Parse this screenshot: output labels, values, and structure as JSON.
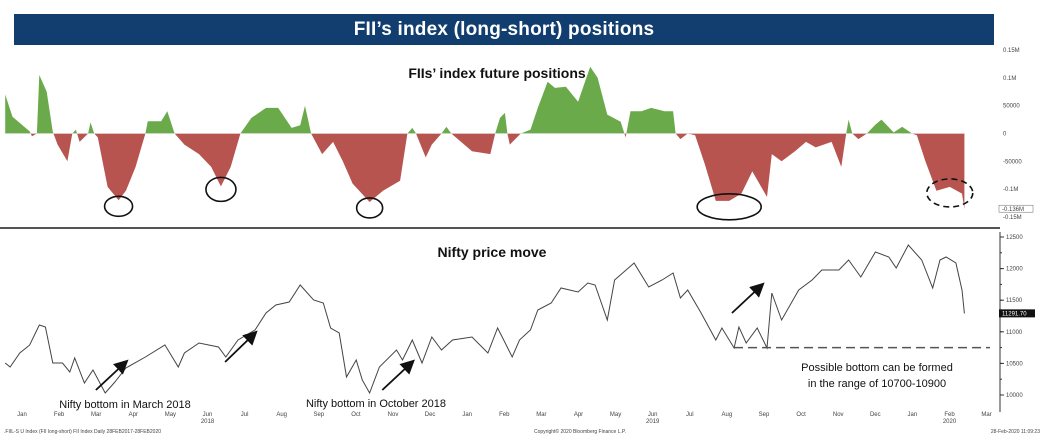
{
  "banner": {
    "title": "FII’s index (long-short) positions"
  },
  "colors": {
    "banner": "#123e6f",
    "positive": "#6aaa4a",
    "negative": "#b85450",
    "line": "#444444"
  },
  "chart_data": [
    {
      "type": "area",
      "title": "FIIs’ index future positions",
      "ylabel": "",
      "ylim": [
        -150000,
        150000
      ],
      "y_ticks": [
        {
          "v": 150000,
          "label": "0.15M"
        },
        {
          "v": 100000,
          "label": "0.1M"
        },
        {
          "v": 50000,
          "label": "50000"
        },
        {
          "v": 0,
          "label": "0"
        },
        {
          "v": -50000,
          "label": "-50000"
        },
        {
          "v": -100000,
          "label": "-0.1M"
        },
        {
          "v": -150000,
          "label": "-0.15M"
        }
      ],
      "last_value_label": "-0.136M",
      "last_value": -136000,
      "fill_positive": "green",
      "fill_negative": "red",
      "highlights": [
        {
          "type": "circle",
          "date": "2018-04-05",
          "style": "solid"
        },
        {
          "type": "circle",
          "date": "2018-06-28",
          "style": "solid"
        },
        {
          "type": "circle",
          "date": "2018-10-28",
          "style": "solid"
        },
        {
          "type": "circle",
          "date": "2019-08-19",
          "style": "solid"
        },
        {
          "type": "circle",
          "date": "2020-02-16",
          "style": "dashed"
        }
      ],
      "points": [
        [
          "2018-01-02",
          70000
        ],
        [
          "2018-01-08",
          30000
        ],
        [
          "2018-01-22",
          4000
        ],
        [
          "2018-01-24",
          -5000
        ],
        [
          "2018-01-28",
          0
        ],
        [
          "2018-01-30",
          105000
        ],
        [
          "2018-02-05",
          75000
        ],
        [
          "2018-02-10",
          3000
        ],
        [
          "2018-02-14",
          -20000
        ],
        [
          "2018-02-22",
          -50000
        ],
        [
          "2018-02-26",
          0
        ],
        [
          "2018-03-01",
          7000
        ],
        [
          "2018-03-04",
          -15000
        ],
        [
          "2018-03-11",
          0
        ],
        [
          "2018-03-13",
          20000
        ],
        [
          "2018-03-16",
          0
        ],
        [
          "2018-03-19",
          -7000
        ],
        [
          "2018-03-27",
          -96000
        ],
        [
          "2018-04-05",
          -120000
        ],
        [
          "2018-04-11",
          -103000
        ],
        [
          "2018-04-19",
          -60000
        ],
        [
          "2018-04-27",
          0
        ],
        [
          "2018-04-29",
          22000
        ],
        [
          "2018-05-10",
          22000
        ],
        [
          "2018-05-15",
          40000
        ],
        [
          "2018-05-21",
          0
        ],
        [
          "2018-05-29",
          -20000
        ],
        [
          "2018-06-10",
          -37000
        ],
        [
          "2018-06-20",
          -60000
        ],
        [
          "2018-06-28",
          -95000
        ],
        [
          "2018-07-06",
          -60000
        ],
        [
          "2018-07-14",
          0
        ],
        [
          "2018-07-23",
          28000
        ],
        [
          "2018-08-04",
          46000
        ],
        [
          "2018-08-14",
          46000
        ],
        [
          "2018-08-25",
          10000
        ],
        [
          "2018-09-01",
          15000
        ],
        [
          "2018-09-05",
          50000
        ],
        [
          "2018-09-10",
          0
        ],
        [
          "2018-09-19",
          -37000
        ],
        [
          "2018-09-28",
          -15000
        ],
        [
          "2018-10-06",
          -50000
        ],
        [
          "2018-10-14",
          -90000
        ],
        [
          "2018-10-28",
          -123000
        ],
        [
          "2018-11-08",
          -103000
        ],
        [
          "2018-11-22",
          -85000
        ],
        [
          "2018-11-28",
          0
        ],
        [
          "2018-12-02",
          10000
        ],
        [
          "2018-12-05",
          0
        ],
        [
          "2018-12-13",
          -43000
        ],
        [
          "2018-12-18",
          -20000
        ],
        [
          "2018-12-26",
          0
        ],
        [
          "2018-12-30",
          12000
        ],
        [
          "2019-01-03",
          0
        ],
        [
          "2019-01-20",
          -32000
        ],
        [
          "2019-02-04",
          -37000
        ],
        [
          "2019-02-08",
          0
        ],
        [
          "2019-02-12",
          28000
        ],
        [
          "2019-02-16",
          37000
        ],
        [
          "2019-02-18",
          0
        ],
        [
          "2019-02-20",
          -20000
        ],
        [
          "2019-03-01",
          0
        ],
        [
          "2019-03-09",
          7000
        ],
        [
          "2019-03-15",
          46000
        ],
        [
          "2019-03-23",
          93000
        ],
        [
          "2019-03-29",
          82000
        ],
        [
          "2019-04-07",
          84000
        ],
        [
          "2019-04-17",
          57000
        ],
        [
          "2019-04-27",
          120000
        ],
        [
          "2019-05-03",
          100000
        ],
        [
          "2019-05-11",
          34000
        ],
        [
          "2019-05-22",
          21000
        ],
        [
          "2019-05-26",
          -7000
        ],
        [
          "2019-05-30",
          40000
        ],
        [
          "2019-06-08",
          40000
        ],
        [
          "2019-06-16",
          46000
        ],
        [
          "2019-06-27",
          40000
        ],
        [
          "2019-07-04",
          40000
        ],
        [
          "2019-07-06",
          0
        ],
        [
          "2019-07-10",
          -10000
        ],
        [
          "2019-07-16",
          0
        ],
        [
          "2019-07-22",
          -3000
        ],
        [
          "2019-07-30",
          -55000
        ],
        [
          "2019-08-08",
          -121000
        ],
        [
          "2019-08-19",
          -121000
        ],
        [
          "2019-08-29",
          -108000
        ],
        [
          "2019-09-07",
          -68000
        ],
        [
          "2019-09-19",
          -114000
        ],
        [
          "2019-09-23",
          -37000
        ],
        [
          "2019-10-01",
          -50000
        ],
        [
          "2019-10-12",
          -32000
        ],
        [
          "2019-10-21",
          -15000
        ],
        [
          "2019-10-29",
          -25000
        ],
        [
          "2019-11-11",
          -15000
        ],
        [
          "2019-11-19",
          -60000
        ],
        [
          "2019-11-23",
          0
        ],
        [
          "2019-11-25",
          25000
        ],
        [
          "2019-11-28",
          0
        ],
        [
          "2019-12-03",
          -10000
        ],
        [
          "2019-12-10",
          0
        ],
        [
          "2019-12-17",
          16000
        ],
        [
          "2019-12-22",
          25000
        ],
        [
          "2020-01-01",
          2000
        ],
        [
          "2020-01-08",
          12000
        ],
        [
          "2020-01-16",
          0
        ],
        [
          "2020-01-20",
          -3000
        ],
        [
          "2020-01-27",
          -50000
        ],
        [
          "2020-02-05",
          -103000
        ],
        [
          "2020-02-16",
          -96000
        ],
        [
          "2020-02-26",
          -108000
        ],
        [
          "2020-02-28",
          -136000
        ]
      ]
    },
    {
      "type": "line",
      "title": "Nifty price move",
      "ylim": [
        9800,
        12600
      ],
      "y_ticks": [
        {
          "v": 12500,
          "label": "12500"
        },
        {
          "v": 12000,
          "label": "12000"
        },
        {
          "v": 11500,
          "label": "11500"
        },
        {
          "v": 11000,
          "label": "11000"
        },
        {
          "v": 10500,
          "label": "10500"
        },
        {
          "v": 10000,
          "label": "10000"
        }
      ],
      "last_value_label": "11291.70",
      "last_value": 11291.7,
      "support_line": {
        "value": 10750,
        "from": "2019-08-23",
        "to": "2020-03-20",
        "style": "dashed"
      },
      "annotations": [
        {
          "text": "Nifty bottom in March 2018",
          "arrow_to": "2018-04-11"
        },
        {
          "text": "Nifty bottom in October 2018",
          "arrow_to": "2018-12-02"
        },
        {
          "text": "Possible bottom can be formed",
          "text2": "in the range of 10700-10900"
        }
      ],
      "arrow_extra": [
        "2018-07-26",
        "2019-09-19"
      ],
      "points": [
        [
          "2018-01-02",
          10507
        ],
        [
          "2018-01-06",
          10443
        ],
        [
          "2018-01-14",
          10665
        ],
        [
          "2018-01-22",
          10790
        ],
        [
          "2018-01-30",
          11108
        ],
        [
          "2018-02-04",
          11076
        ],
        [
          "2018-02-10",
          10507
        ],
        [
          "2018-02-18",
          10507
        ],
        [
          "2018-02-24",
          10364
        ],
        [
          "2018-02-28",
          10586
        ],
        [
          "2018-03-08",
          10190
        ],
        [
          "2018-03-15",
          10396
        ],
        [
          "2018-03-25",
          10032
        ],
        [
          "2018-04-02",
          10206
        ],
        [
          "2018-04-11",
          10428
        ],
        [
          "2018-04-27",
          10602
        ],
        [
          "2018-05-13",
          10792
        ],
        [
          "2018-05-24",
          10443
        ],
        [
          "2018-05-29",
          10665
        ],
        [
          "2018-06-10",
          10823
        ],
        [
          "2018-06-26",
          10760
        ],
        [
          "2018-07-02",
          10602
        ],
        [
          "2018-07-12",
          10871
        ],
        [
          "2018-07-26",
          11030
        ],
        [
          "2018-08-04",
          11298
        ],
        [
          "2018-08-12",
          11424
        ],
        [
          "2018-08-23",
          11472
        ],
        [
          "2018-09-01",
          11740
        ],
        [
          "2018-09-12",
          11503
        ],
        [
          "2018-09-20",
          11456
        ],
        [
          "2018-09-26",
          11060
        ],
        [
          "2018-10-03",
          10981
        ],
        [
          "2018-10-09",
          10285
        ],
        [
          "2018-10-17",
          10554
        ],
        [
          "2018-10-22",
          10238
        ],
        [
          "2018-10-28",
          10032
        ],
        [
          "2018-11-05",
          10443
        ],
        [
          "2018-11-19",
          10712
        ],
        [
          "2018-11-24",
          10554
        ],
        [
          "2018-12-02",
          10871
        ],
        [
          "2018-12-10",
          10507
        ],
        [
          "2018-12-18",
          10918
        ],
        [
          "2018-12-26",
          10712
        ],
        [
          "2019-01-04",
          10871
        ],
        [
          "2019-01-20",
          10918
        ],
        [
          "2019-02-02",
          10665
        ],
        [
          "2019-02-10",
          11060
        ],
        [
          "2019-02-15",
          10871
        ],
        [
          "2019-02-22",
          10602
        ],
        [
          "2019-02-28",
          10871
        ],
        [
          "2019-03-09",
          11030
        ],
        [
          "2019-03-15",
          11345
        ],
        [
          "2019-03-26",
          11456
        ],
        [
          "2019-04-03",
          11693
        ],
        [
          "2019-04-17",
          11630
        ],
        [
          "2019-04-25",
          11772
        ],
        [
          "2019-05-01",
          11740
        ],
        [
          "2019-05-11",
          11187
        ],
        [
          "2019-05-17",
          11820
        ],
        [
          "2019-06-02",
          12089
        ],
        [
          "2019-06-14",
          11709
        ],
        [
          "2019-06-25",
          11820
        ],
        [
          "2019-07-04",
          11930
        ],
        [
          "2019-07-10",
          11535
        ],
        [
          "2019-07-16",
          11661
        ],
        [
          "2019-07-27",
          11298
        ],
        [
          "2019-08-08",
          10871
        ],
        [
          "2019-08-13",
          11060
        ],
        [
          "2019-08-23",
          10744
        ],
        [
          "2019-08-27",
          11076
        ],
        [
          "2019-09-02",
          10823
        ],
        [
          "2019-09-11",
          11060
        ],
        [
          "2019-09-19",
          10744
        ],
        [
          "2019-09-23",
          11614
        ],
        [
          "2019-10-01",
          11187
        ],
        [
          "2019-10-15",
          11661
        ],
        [
          "2019-10-26",
          11820
        ],
        [
          "2019-11-03",
          11978
        ],
        [
          "2019-11-17",
          11978
        ],
        [
          "2019-11-25",
          12136
        ],
        [
          "2019-12-05",
          11867
        ],
        [
          "2019-12-17",
          12263
        ],
        [
          "2019-12-28",
          12184
        ],
        [
          "2020-01-03",
          12010
        ],
        [
          "2020-01-13",
          12373
        ],
        [
          "2020-01-24",
          12136
        ],
        [
          "2020-02-02",
          11693
        ],
        [
          "2020-02-08",
          12136
        ],
        [
          "2020-02-13",
          12184
        ],
        [
          "2020-02-21",
          12089
        ],
        [
          "2020-02-26",
          11661
        ],
        [
          "2020-02-28",
          11291.7
        ]
      ]
    }
  ],
  "x_axis": {
    "months": [
      "Jan",
      "Feb",
      "Mar",
      "Apr",
      "May",
      "Jun",
      "Jul",
      "Aug",
      "Sep",
      "Oct",
      "Nov",
      "Dec",
      "Jan",
      "Feb",
      "Mar",
      "Apr",
      "May",
      "Jun",
      "Jul",
      "Aug",
      "Sep",
      "Oct",
      "Nov",
      "Dec",
      "Jan",
      "Feb",
      "Mar"
    ],
    "years": [
      {
        "label": "2018",
        "month_index": 5
      },
      {
        "label": "2019",
        "month_index": 17
      },
      {
        "label": "2020",
        "month_index": 25
      }
    ]
  },
  "footer": {
    "left": ".FIIL-S U Index (FII long-short) FII Index  Daily 28FEB2017-28FEB2020",
    "center": "Copyright© 2020 Bloomberg Finance L.P.",
    "right": "28-Feb-2020 11:09:23"
  }
}
